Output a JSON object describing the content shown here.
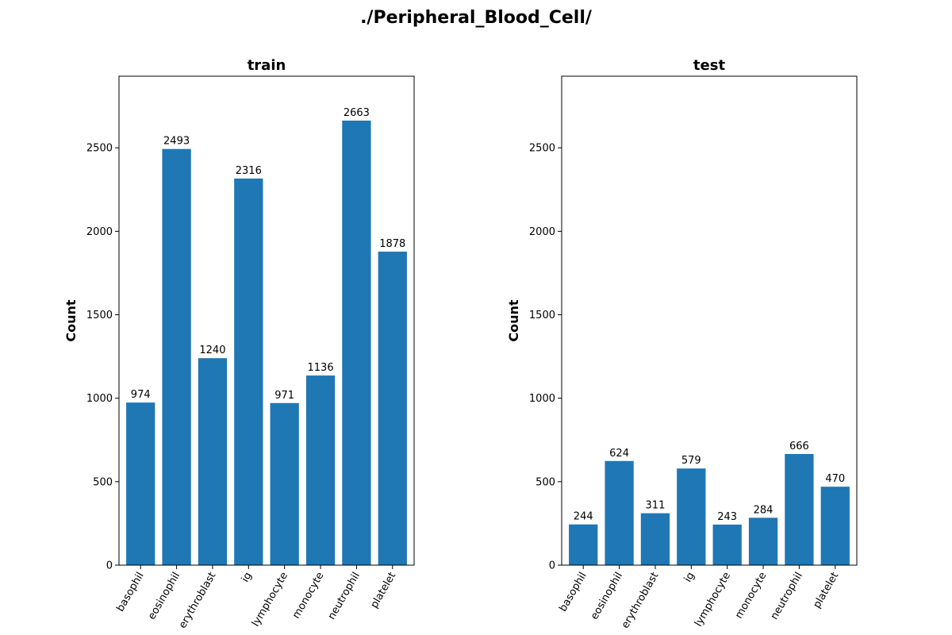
{
  "figure_title": "./Peripheral_Blood_Cell/",
  "chart_data": [
    {
      "type": "bar",
      "title": "train",
      "xlabel": "",
      "ylabel": "Count",
      "categories": [
        "basophil",
        "eosinophil",
        "erythroblast",
        "ig",
        "lymphocyte",
        "monocyte",
        "neutrophil",
        "platelet"
      ],
      "values": [
        974,
        2493,
        1240,
        2316,
        971,
        1136,
        2663,
        1878
      ],
      "ylim": [
        0,
        2929
      ],
      "yticks": [
        0,
        500,
        1000,
        1500,
        2000,
        2500
      ],
      "color": "#1f77b4",
      "grid": false,
      "legend": null
    },
    {
      "type": "bar",
      "title": "test",
      "xlabel": "",
      "ylabel": "Count",
      "categories": [
        "basophil",
        "eosinophil",
        "erythroblast",
        "ig",
        "lymphocyte",
        "monocyte",
        "neutrophil",
        "platelet"
      ],
      "values": [
        244,
        624,
        311,
        579,
        243,
        284,
        666,
        470
      ],
      "ylim": [
        0,
        2929
      ],
      "yticks": [
        0,
        500,
        1000,
        1500,
        2000,
        2500
      ],
      "color": "#1f77b4",
      "grid": false,
      "legend": null
    }
  ]
}
